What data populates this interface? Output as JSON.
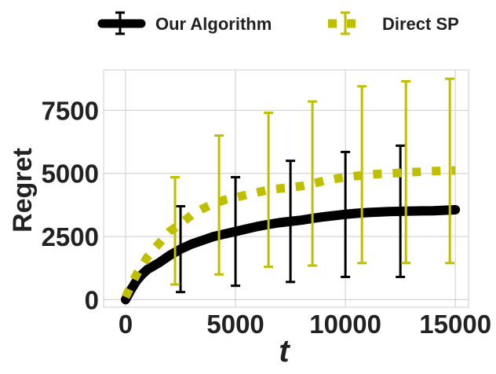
{
  "chart_data": {
    "type": "line",
    "title": "",
    "xlabel": "t",
    "ylabel": "Regret",
    "xlim": [
      -1000,
      15600
    ],
    "ylim": [
      -300,
      9100
    ],
    "xticks": [
      0,
      5000,
      10000,
      15000
    ],
    "yticks": [
      0,
      2500,
      5000,
      7500
    ],
    "xtick_labels": [
      "0",
      "5000",
      "10000",
      "15000"
    ],
    "ytick_labels": [
      "0",
      "2500",
      "5000",
      "7500"
    ],
    "grid": true,
    "legend_position": "top-center",
    "series": [
      {
        "name": "Our Algorithm",
        "color": "#000000",
        "style": "solid",
        "x": [
          0,
          250,
          500,
          750,
          1000,
          1500,
          2000,
          2500,
          3000,
          3500,
          4000,
          4500,
          5000,
          5500,
          6000,
          6500,
          7000,
          7500,
          8000,
          8500,
          9000,
          9500,
          10000,
          10500,
          11000,
          11500,
          12000,
          12500,
          13000,
          13500,
          14000,
          14500,
          15000
        ],
        "y": [
          0,
          400,
          750,
          1000,
          1200,
          1450,
          1750,
          2000,
          2200,
          2350,
          2500,
          2600,
          2700,
          2800,
          2900,
          2980,
          3050,
          3100,
          3150,
          3220,
          3280,
          3330,
          3380,
          3420,
          3450,
          3470,
          3490,
          3500,
          3510,
          3515,
          3520,
          3540,
          3560
        ],
        "error_bars": [
          {
            "x": 2500,
            "low": 300,
            "high": 3700
          },
          {
            "x": 5000,
            "low": 550,
            "high": 4850
          },
          {
            "x": 7500,
            "low": 700,
            "high": 5500
          },
          {
            "x": 10000,
            "low": 900,
            "high": 5850
          },
          {
            "x": 12500,
            "low": 900,
            "high": 6100
          }
        ]
      },
      {
        "name": "Direct SP",
        "color": "#bfbf00",
        "style": "dotted",
        "x": [
          0,
          500,
          1000,
          1500,
          2000,
          2500,
          3000,
          3500,
          4000,
          4500,
          5000,
          5500,
          6000,
          6500,
          7000,
          7500,
          8000,
          8500,
          9000,
          9500,
          10000,
          10500,
          11000,
          11500,
          12000,
          12500,
          13000,
          13500,
          14000,
          14500,
          15000
        ],
        "y": [
          100,
          1000,
          1700,
          2200,
          2700,
          3000,
          3350,
          3600,
          3800,
          3950,
          4050,
          4150,
          4250,
          4350,
          4400,
          4450,
          4500,
          4600,
          4700,
          4780,
          4850,
          4900,
          4950,
          4980,
          5000,
          5020,
          5050,
          5070,
          5090,
          5100,
          5120
        ],
        "error_bars": [
          {
            "x": 2250,
            "low": 600,
            "high": 4850
          },
          {
            "x": 4250,
            "low": 1000,
            "high": 6500
          },
          {
            "x": 6500,
            "low": 1300,
            "high": 7400
          },
          {
            "x": 8500,
            "low": 1350,
            "high": 7850
          },
          {
            "x": 10750,
            "low": 1450,
            "high": 8450
          },
          {
            "x": 12750,
            "low": 1450,
            "high": 8650
          },
          {
            "x": 14750,
            "low": 1450,
            "high": 8750
          }
        ]
      }
    ]
  }
}
